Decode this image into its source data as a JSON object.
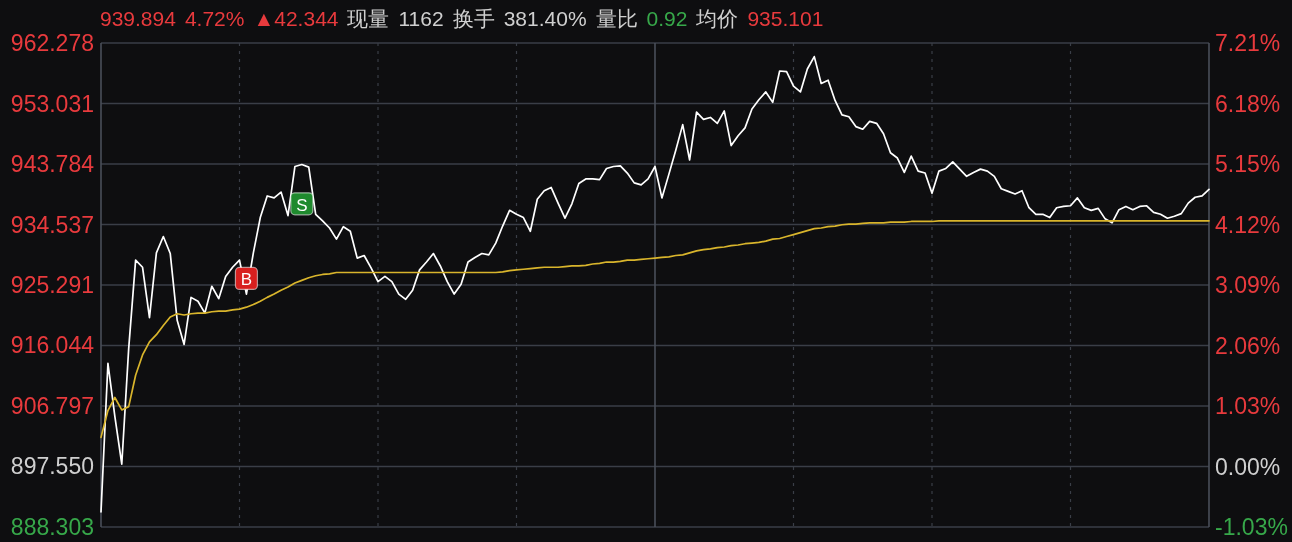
{
  "chart_data": {
    "type": "line",
    "title": "939.894 4.72% ▲42.344 现量 1162 换手 381.40% 量比 0.92 均价 935.101",
    "categories": [
      null,
      null,
      null,
      null,
      null,
      null,
      null,
      null,
      null,
      null,
      null,
      null,
      null,
      null,
      null,
      null,
      null,
      null,
      null,
      null,
      null,
      null,
      null,
      null,
      null,
      null,
      null,
      null,
      null,
      null,
      null,
      null,
      null,
      null,
      null,
      null,
      null,
      null,
      null,
      null,
      null,
      null,
      null,
      null,
      null,
      null,
      null,
      null,
      null,
      null,
      null,
      null,
      null,
      null,
      null,
      null,
      null,
      null,
      null,
      null,
      null,
      null,
      null,
      null,
      null,
      null,
      null,
      null,
      null,
      null,
      null,
      null,
      null,
      null,
      null,
      null,
      null,
      null,
      null,
      null,
      null,
      null,
      null,
      null,
      null,
      null,
      null,
      null,
      null,
      null,
      null,
      null,
      null,
      null,
      null,
      null,
      null,
      null,
      null,
      null,
      null,
      null,
      null,
      null,
      null,
      null,
      null,
      null,
      null,
      null,
      null,
      null,
      null,
      null,
      null,
      null,
      null,
      null,
      null,
      null,
      null,
      null,
      null,
      null,
      null,
      null,
      null,
      null,
      null,
      null,
      null,
      null,
      null,
      null,
      null,
      null,
      null,
      null,
      null,
      null,
      null,
      null,
      null,
      null,
      null,
      null,
      null,
      null,
      null,
      null,
      null,
      null,
      null,
      null,
      null,
      null,
      null,
      null,
      null,
      null,
      null
    ],
    "series": [
      {
        "color": "#ffffff",
        "values": [
          890.6,
          913.3,
          905.2,
          897.9,
          915.6,
          929.1,
          928.0,
          920.3,
          930.2,
          932.7,
          930.1,
          919.9,
          916.2,
          923.4,
          922.8,
          921.0,
          925.1,
          923.2,
          926.6,
          928.0,
          929.1,
          923.9,
          930.2,
          935.6,
          938.9,
          938.6,
          939.5,
          935.9,
          943.4,
          943.7,
          943.3,
          936.1,
          935.1,
          934.0,
          932.3,
          934.2,
          933.5,
          929.4,
          929.8,
          927.9,
          925.8,
          926.6,
          925.8,
          923.9,
          923.1,
          924.5,
          927.6,
          928.8,
          930.1,
          928.2,
          925.8,
          923.9,
          925.4,
          928.8,
          929.5,
          930.1,
          929.9,
          931.7,
          934.3,
          936.7,
          936.1,
          935.6,
          933.5,
          938.4,
          939.7,
          940.2,
          937.8,
          935.5,
          937.7,
          940.8,
          941.5,
          941.5,
          941.4,
          943.1,
          943.4,
          943.5,
          942.4,
          940.9,
          940.6,
          941.5,
          943.4,
          938.6,
          942.2,
          945.9,
          949.8,
          944.4,
          951.7,
          950.6,
          950.9,
          950.0,
          951.9,
          946.6,
          948.1,
          949.3,
          952.2,
          953.6,
          954.8,
          953.2,
          958.0,
          957.9,
          955.7,
          954.8,
          958.3,
          960.2,
          956.1,
          956.6,
          953.5,
          951.3,
          951.0,
          949.5,
          949.1,
          950.3,
          950.0,
          948.4,
          945.5,
          944.7,
          942.5,
          945.0,
          942.7,
          942.4,
          939.3,
          942.7,
          943.1,
          944.1,
          943.0,
          941.9,
          942.5,
          943.0,
          942.7,
          941.9,
          940.0,
          939.6,
          939.2,
          939.7,
          937.1,
          936.1,
          936.1,
          935.6,
          937.1,
          937.3,
          937.4,
          938.6,
          937.1,
          936.7,
          937.0,
          935.4,
          934.8,
          936.8,
          937.3,
          936.8,
          937.3,
          937.4,
          936.4,
          936.1,
          935.5,
          935.8,
          936.2,
          937.8,
          938.7,
          938.9,
          939.9
        ]
      },
      {
        "color": "#d9b52c",
        "values": [
          902.0,
          906.1,
          908.1,
          906.2,
          906.7,
          911.5,
          914.6,
          916.6,
          917.7,
          919.1,
          920.4,
          920.9,
          920.7,
          920.9,
          921.0,
          921.0,
          921.2,
          921.3,
          921.3,
          921.5,
          921.6,
          921.9,
          922.3,
          922.8,
          923.4,
          923.9,
          924.5,
          925.0,
          925.6,
          926.0,
          926.4,
          926.7,
          926.9,
          927.0,
          927.2,
          927.2,
          927.2,
          927.2,
          927.2,
          927.2,
          927.2,
          927.2,
          927.2,
          927.2,
          927.2,
          927.2,
          927.2,
          927.2,
          927.2,
          927.2,
          927.2,
          927.2,
          927.2,
          927.2,
          927.2,
          927.2,
          927.2,
          927.2,
          927.3,
          927.5,
          927.6,
          927.7,
          927.8,
          927.9,
          928.0,
          928.0,
          928.0,
          928.1,
          928.2,
          928.2,
          928.3,
          928.5,
          928.6,
          928.8,
          928.8,
          928.9,
          929.1,
          929.1,
          929.2,
          929.3,
          929.4,
          929.5,
          929.6,
          929.8,
          929.9,
          930.2,
          930.5,
          930.7,
          930.8,
          931.0,
          931.1,
          931.3,
          931.4,
          931.6,
          931.7,
          931.8,
          932.0,
          932.3,
          932.4,
          932.7,
          933.0,
          933.3,
          933.6,
          933.9,
          934.0,
          934.2,
          934.3,
          934.5,
          934.6,
          934.6,
          934.7,
          934.8,
          934.8,
          934.8,
          934.9,
          934.9,
          934.9,
          935.0,
          935.0,
          935.0,
          935.0,
          935.1,
          935.1,
          935.1,
          935.1,
          935.1,
          935.1,
          935.1,
          935.1,
          935.1,
          935.1,
          935.1,
          935.1,
          935.1,
          935.1,
          935.1,
          935.1,
          935.1,
          935.1,
          935.1,
          935.1,
          935.1,
          935.1,
          935.1,
          935.1,
          935.1,
          935.1,
          935.1,
          935.1,
          935.1,
          935.1,
          935.1,
          935.1,
          935.1,
          935.1,
          935.1,
          935.1,
          935.1,
          935.1,
          935.1,
          935.1
        ]
      },
      {
        "name": "B",
        "type": "scatter",
        "marker": "square",
        "color": "#d8201f",
        "values": [
          null,
          null,
          null,
          null,
          null,
          null,
          null,
          null,
          null,
          null,
          null,
          null,
          null,
          null,
          null,
          null,
          null,
          null,
          null,
          null,
          null,
          926.3,
          null,
          null,
          null,
          null,
          null,
          null,
          null,
          null,
          null,
          null,
          null,
          null,
          null,
          null,
          null,
          null,
          null,
          null,
          null,
          null,
          null,
          null,
          null,
          null,
          null,
          null,
          null,
          null,
          null,
          null,
          null,
          null,
          null,
          null,
          null,
          null,
          null,
          null,
          null,
          null,
          null,
          null,
          null,
          null,
          null,
          null,
          null,
          null,
          null,
          null,
          null,
          null,
          null,
          null,
          null,
          null,
          null,
          null,
          null,
          null,
          null,
          null,
          null,
          null,
          null,
          null,
          null,
          null,
          null,
          null,
          null,
          null,
          null,
          null,
          null,
          null,
          null,
          null,
          null,
          null,
          null,
          null,
          null,
          null,
          null,
          null,
          null,
          null,
          null,
          null,
          null,
          null,
          null,
          null,
          null,
          null,
          null,
          null,
          null,
          null,
          null,
          null,
          null,
          null,
          null,
          null,
          null,
          null,
          null,
          null,
          null,
          null,
          null,
          null,
          null,
          null,
          null,
          null,
          null,
          null,
          null,
          null,
          null,
          null,
          null,
          null,
          null,
          null,
          null,
          null,
          null,
          null,
          null,
          null,
          null,
          null,
          null,
          null,
          null
        ]
      },
      {
        "name": "S",
        "type": "scatter",
        "marker": "square",
        "color": "#1f8a2e",
        "values": [
          null,
          null,
          null,
          null,
          null,
          null,
          null,
          null,
          null,
          null,
          null,
          null,
          null,
          null,
          null,
          null,
          null,
          null,
          null,
          null,
          null,
          null,
          null,
          null,
          null,
          null,
          null,
          null,
          null,
          937.7,
          null,
          null,
          null,
          null,
          null,
          null,
          null,
          null,
          null,
          null,
          null,
          null,
          null,
          null,
          null,
          null,
          null,
          null,
          null,
          null,
          null,
          null,
          null,
          null,
          null,
          null,
          null,
          null,
          null,
          null,
          null,
          null,
          null,
          null,
          null,
          null,
          null,
          null,
          null,
          null,
          null,
          null,
          null,
          null,
          null,
          null,
          null,
          null,
          null,
          null,
          null,
          null,
          null,
          null,
          null,
          null,
          null,
          null,
          null,
          null,
          null,
          null,
          null,
          null,
          null,
          null,
          null,
          null,
          null,
          null,
          null,
          null,
          null,
          null,
          null,
          null,
          null,
          null,
          null,
          null,
          null,
          null,
          null,
          null,
          null,
          null,
          null,
          null,
          null,
          null,
          null,
          null,
          null,
          null,
          null,
          null,
          null,
          null,
          null,
          null,
          null,
          null,
          null,
          null,
          null,
          null,
          null,
          null,
          null,
          null,
          null,
          null,
          null,
          null,
          null,
          null,
          null,
          null,
          null,
          null,
          null,
          null,
          null,
          null,
          null,
          null,
          null,
          null,
          null,
          null,
          null
        ]
      }
    ],
    "ylim": [
      888.303,
      962.278
    ],
    "yticks": [
      {
        "value": 888.303,
        "label": "888.303"
      },
      {
        "value": 897.55,
        "label": "897.550"
      },
      {
        "value": 906.797,
        "label": "906.797"
      },
      {
        "value": 916.044,
        "label": "916.044"
      },
      {
        "value": 925.291,
        "label": "925.291"
      },
      {
        "value": 934.537,
        "label": "934.537"
      },
      {
        "value": 943.784,
        "label": "943.784"
      },
      {
        "value": 953.031,
        "label": "953.031"
      },
      {
        "value": 962.278,
        "label": "962.278"
      }
    ],
    "y2lim": [
      -1.03,
      7.21
    ],
    "y2ticks": [
      {
        "value": -1.03,
        "label": "-1.03%"
      },
      {
        "value": 0,
        "label": "0.00%"
      },
      {
        "value": 1.03,
        "label": "1.03%"
      },
      {
        "value": 2.06,
        "label": "2.06%"
      },
      {
        "value": 3.09,
        "label": "3.09%"
      },
      {
        "value": 4.12,
        "label": "4.12%"
      },
      {
        "value": 5.15,
        "label": "5.15%"
      },
      {
        "value": 6.18,
        "label": "6.18%"
      },
      {
        "value": 7.21,
        "label": "7.21%"
      }
    ],
    "grid": true
  }
}
